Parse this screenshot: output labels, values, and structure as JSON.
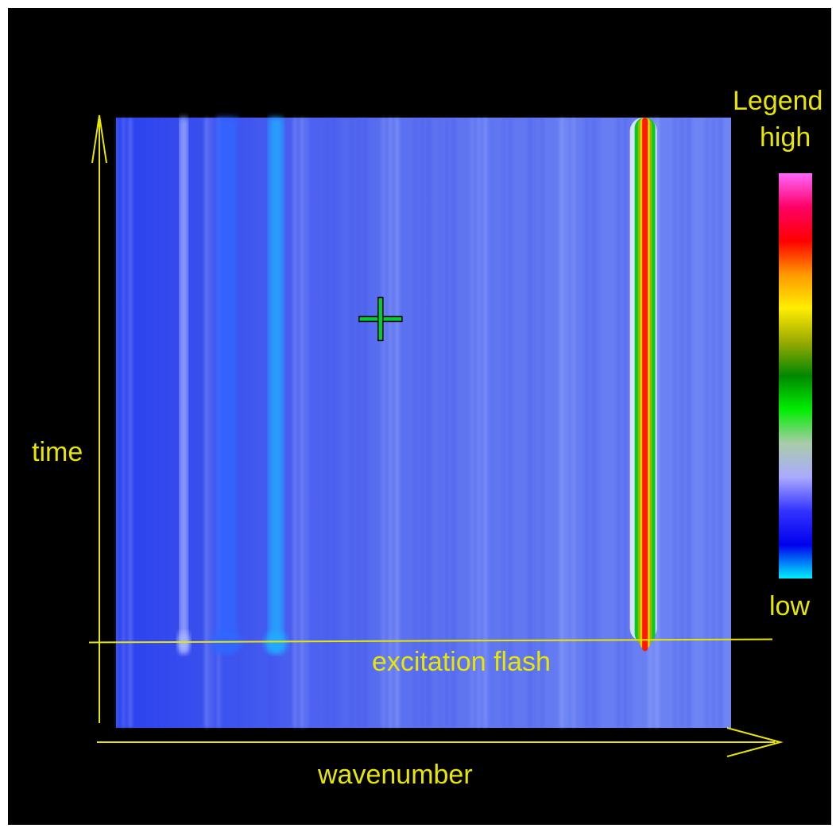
{
  "chart_data": {
    "type": "heatmap",
    "title": "",
    "xlabel": "wavenumber",
    "ylabel": "time",
    "annotations": [
      {
        "text": "excitation flash",
        "time_fraction": 0.14
      }
    ],
    "legend": {
      "title": "Legend",
      "high_label": "high",
      "low_label": "low",
      "placement": "right",
      "scale_colors_high_to_low": [
        "#ff66ff",
        "#ff0066",
        "#ff0000",
        "#ff9900",
        "#ffee00",
        "#99aa00",
        "#008800",
        "#00ee00",
        "#aaccaa",
        "#aaaaff",
        "#3333ff",
        "#0000ee",
        "#00eeff"
      ]
    },
    "bands": [
      {
        "wavenumber_fraction": 0.11,
        "intensity": "low-medium",
        "color": "#aab8ff"
      },
      {
        "wavenumber_fraction": 0.18,
        "intensity": "low",
        "color": "#3366ff"
      },
      {
        "wavenumber_fraction": 0.26,
        "intensity": "medium",
        "color": "#22aaff"
      },
      {
        "wavenumber_fraction": 0.86,
        "intensity": "high",
        "color": "#ff0000"
      }
    ],
    "background_color": "#4a6aff",
    "axis_color": "#e8e600"
  },
  "cursor": {
    "icon": "crosshair-icon",
    "color": "#00cc33"
  }
}
